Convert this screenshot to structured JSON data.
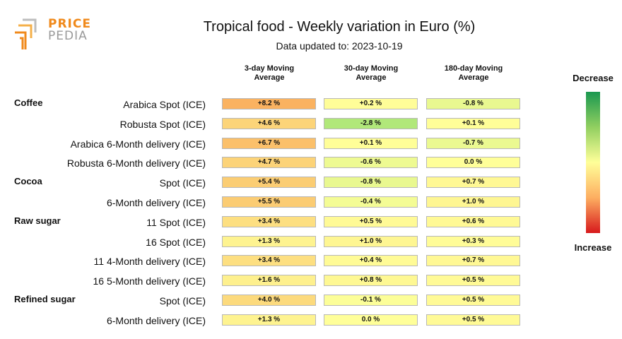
{
  "logo": {
    "word1": "PRICE",
    "word2": "PEDIA"
  },
  "chart_data": {
    "type": "table",
    "title": "Tropical food - Weekly variation in Euro (%)",
    "subtitle": "Data updated to: 2023-10-19",
    "columns": [
      "3-day Moving\nAverage",
      "30-day Moving\nAverage",
      "180-day Moving\nAverage"
    ],
    "groups": [
      {
        "name": "Coffee",
        "rows": [
          {
            "label": "Arabica Spot (ICE)",
            "values": [
              "+8.2 %",
              "+0.2 %",
              "-0.8 %"
            ]
          },
          {
            "label": "Robusta Spot (ICE)",
            "values": [
              "+4.6 %",
              "-2.8 %",
              "+0.1 %"
            ]
          },
          {
            "label": "Arabica 6-Month delivery (ICE)",
            "values": [
              "+6.7 %",
              "+0.1 %",
              "-0.7 %"
            ]
          },
          {
            "label": "Robusta 6-Month delivery (ICE)",
            "values": [
              "+4.7 %",
              "-0.6 %",
              "0.0 %"
            ]
          }
        ]
      },
      {
        "name": "Cocoa",
        "rows": [
          {
            "label": "Spot (ICE)",
            "values": [
              "+5.4 %",
              "-0.8 %",
              "+0.7 %"
            ]
          },
          {
            "label": "6-Month delivery (ICE)",
            "values": [
              "+5.5 %",
              "-0.4 %",
              "+1.0 %"
            ]
          }
        ]
      },
      {
        "name": "Raw sugar",
        "rows": [
          {
            "label": "11 Spot (ICE)",
            "values": [
              "+3.4 %",
              "+0.5 %",
              "+0.6 %"
            ]
          },
          {
            "label": "16 Spot (ICE)",
            "values": [
              "+1.3 %",
              "+1.0 %",
              "+0.3 %"
            ]
          },
          {
            "label": "11 4-Month delivery (ICE)",
            "values": [
              "+3.4 %",
              "+0.4 %",
              "+0.7 %"
            ]
          },
          {
            "label": "16 5-Month delivery (ICE)",
            "values": [
              "+1.6 %",
              "+0.8 %",
              "+0.5 %"
            ]
          }
        ]
      },
      {
        "name": "Refined sugar",
        "rows": [
          {
            "label": "Spot (ICE)",
            "values": [
              "+4.0 %",
              "-0.1 %",
              "+0.5 %"
            ]
          },
          {
            "label": "6-Month delivery (ICE)",
            "values": [
              "+1.3 %",
              "0.0 %",
              "+0.5 %"
            ]
          }
        ]
      }
    ],
    "scale": {
      "top_label": "Decrease",
      "bottom_label": "Increase"
    }
  }
}
